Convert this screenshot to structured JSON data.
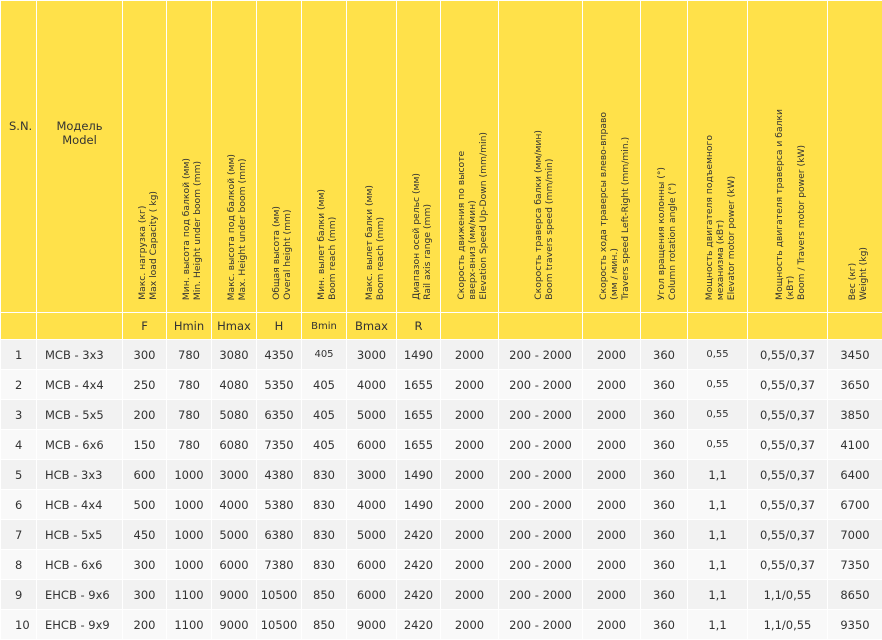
{
  "header": {
    "sn": "S.N.",
    "model_ru": "Модель",
    "model_en": "Model",
    "columns": [
      {
        "ru": "Макс. нагрузка (кг)",
        "en": "Max load Capacity ( kg)"
      },
      {
        "ru": "Мин. высота под балкой (мм)",
        "en": "Min. Height under boom (mm)"
      },
      {
        "ru": "Макс. высота под балкой (мм)",
        "en": "Max. Height under boom (mm)"
      },
      {
        "ru": "Общая высота (мм)",
        "en": "Overal height (mm)"
      },
      {
        "ru": "Мин. вылет балки (мм)",
        "en": "Boom reach (mm)"
      },
      {
        "ru": "Макс. вылет балки (мм)",
        "en": "Boom reach (mm)"
      },
      {
        "ru": "Диапазон осей рельс (мм)",
        "en": "Rail axis range (mm)"
      },
      {
        "ru": "Скорость движения по высоте",
        "ru2": "вверх-вниз (мм/мин)",
        "en": "Elevation Speed Up-Down (mm/min)"
      },
      {
        "ru": "Скорость траверса балки (мм/мин)",
        "en": "Boom travers speed (mm/min)"
      },
      {
        "ru": "Скорость хода траверсы влево-вправо",
        "ru2": "(мм / мин.)",
        "en": "Travers speed Left-Right (mm/min.)"
      },
      {
        "ru": "Угол вращения колонны (°)",
        "en": "Column rotation angle (°)"
      },
      {
        "ru": "Мощность двигателя подъемного",
        "ru2": "механизма (кВт)",
        "en": "Elevator motor power (kW)"
      },
      {
        "ru": "Мощность двигателя траверса и балки",
        "ru2": "(кВт)",
        "en": "Boom / Travers motor power (kW)"
      },
      {
        "ru": "Вес (кг)",
        "en": "Weight (kg)"
      }
    ],
    "symbols": [
      "",
      "",
      "F",
      "Hmin",
      "Hmax",
      "H",
      "Bmin",
      "Bmax",
      "R",
      "",
      "",
      "",
      "",
      "",
      "",
      ""
    ]
  },
  "rows": [
    {
      "n": "1",
      "model": "MCB - 3x3",
      "f": "300",
      "hmin": "780",
      "hmax": "3080",
      "h": "4350",
      "bmin": "405",
      "bmax": "3000",
      "r": "1490",
      "elev": "2000",
      "boom": "200 - 2000",
      "trav": "2000",
      "rot": "360",
      "emot": "0,55",
      "bmot": "0,55/0,37",
      "w": "3450"
    },
    {
      "n": "2",
      "model": "MCB - 4x4",
      "f": "250",
      "hmin": "780",
      "hmax": "4080",
      "h": "5350",
      "bmin": "405",
      "bmax": "4000",
      "r": "1655",
      "elev": "2000",
      "boom": "200 - 2000",
      "trav": "2000",
      "rot": "360",
      "emot": "0,55",
      "bmot": "0,55/0,37",
      "w": "3650"
    },
    {
      "n": "3",
      "model": "MCB - 5x5",
      "f": "200",
      "hmin": "780",
      "hmax": "5080",
      "h": "6350",
      "bmin": "405",
      "bmax": "5000",
      "r": "1655",
      "elev": "2000",
      "boom": "200 - 2000",
      "trav": "2000",
      "rot": "360",
      "emot": "0,55",
      "bmot": "0,55/0,37",
      "w": "3850"
    },
    {
      "n": "4",
      "model": "MCB - 6x6",
      "f": "150",
      "hmin": "780",
      "hmax": "6080",
      "h": "7350",
      "bmin": "405",
      "bmax": "6000",
      "r": "1655",
      "elev": "2000",
      "boom": "200 - 2000",
      "trav": "2000",
      "rot": "360",
      "emot": "0,55",
      "bmot": "0,55/0,37",
      "w": "4100"
    },
    {
      "n": "5",
      "model": "HCB - 3x3",
      "f": "600",
      "hmin": "1000",
      "hmax": "3000",
      "h": "4380",
      "bmin": "830",
      "bmax": "3000",
      "r": "1490",
      "elev": "2000",
      "boom": "200 - 2000",
      "trav": "2000",
      "rot": "360",
      "emot": "1,1",
      "bmot": "0,55/0,37",
      "w": "6400"
    },
    {
      "n": "6",
      "model": "HCB - 4x4",
      "f": "500",
      "hmin": "1000",
      "hmax": "4000",
      "h": "5380",
      "bmin": "830",
      "bmax": "4000",
      "r": "1490",
      "elev": "2000",
      "boom": "200 - 2000",
      "trav": "2000",
      "rot": "360",
      "emot": "1,1",
      "bmot": "0,55/0,37",
      "w": "6700"
    },
    {
      "n": "7",
      "model": "HCB - 5x5",
      "f": "450",
      "hmin": "1000",
      "hmax": "5000",
      "h": "6380",
      "bmin": "830",
      "bmax": "5000",
      "r": "2420",
      "elev": "2000",
      "boom": "200 - 2000",
      "trav": "2000",
      "rot": "360",
      "emot": "1,1",
      "bmot": "0,55/0,37",
      "w": "7000"
    },
    {
      "n": "8",
      "model": "HCB - 6x6",
      "f": "300",
      "hmin": "1000",
      "hmax": "6000",
      "h": "7380",
      "bmin": "830",
      "bmax": "6000",
      "r": "2420",
      "elev": "2000",
      "boom": "200 - 2000",
      "trav": "2000",
      "rot": "360",
      "emot": "1,1",
      "bmot": "0,55/0,37",
      "w": "7350"
    },
    {
      "n": "9",
      "model": "EHCB - 9x6",
      "f": "300",
      "hmin": "1100",
      "hmax": "9000",
      "h": "10500",
      "bmin": "850",
      "bmax": "6000",
      "r": "2420",
      "elev": "2000",
      "boom": "200 - 2000",
      "trav": "2000",
      "rot": "360",
      "emot": "1,1",
      "bmot": "1,1/0,55",
      "w": "8650"
    },
    {
      "n": "10",
      "model": "EHCB - 9x9",
      "f": "200",
      "hmin": "1100",
      "hmax": "9000",
      "h": "10500",
      "bmin": "850",
      "bmax": "9000",
      "r": "2420",
      "elev": "2000",
      "boom": "200 - 2000",
      "trav": "2000",
      "rot": "360",
      "emot": "1,1",
      "bmot": "1,1/0,55",
      "w": "9350"
    }
  ]
}
